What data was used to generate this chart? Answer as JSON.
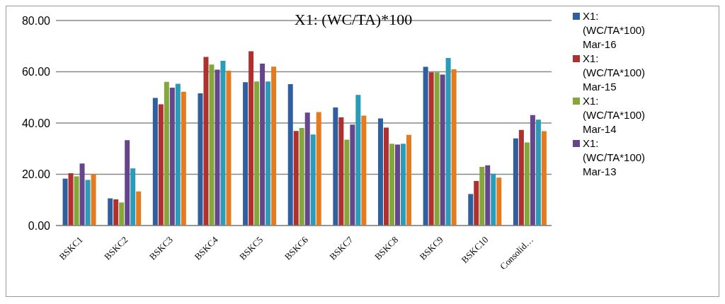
{
  "chart_data": {
    "type": "bar",
    "title": "X1: (WC/TA)*100",
    "categories": [
      "BSKC1",
      "BSKC2",
      "BSKC3",
      "BSKC4",
      "BSKC5",
      "BSKC6",
      "BSKC7",
      "BSKC8",
      "BSKC9",
      "BSKC10",
      "Consolid…"
    ],
    "series": [
      {
        "name": "X1: (WC/TA*100) Mar-16",
        "color": "#2f5f9f",
        "values": [
          18.3,
          10.6,
          49.8,
          51.6,
          55.9,
          55.2,
          46.1,
          41.8,
          61.9,
          12.3,
          34.0
        ]
      },
      {
        "name": "X1: (WC/TA*100) Mar-15",
        "color": "#b0302f",
        "values": [
          20.4,
          10.2,
          47.3,
          65.8,
          68.0,
          36.9,
          42.2,
          38.2,
          59.8,
          17.4,
          37.3
        ]
      },
      {
        "name": "X1: (WC/TA*100) Mar-14",
        "color": "#84a63a",
        "values": [
          19.2,
          9.0,
          56.1,
          62.8,
          56.2,
          38.1,
          33.5,
          31.9,
          59.8,
          22.9,
          32.4
        ]
      },
      {
        "name": "X1: (WC/TA*100) Mar-13",
        "color": "#65468c",
        "values": [
          24.2,
          33.3,
          53.8,
          60.8,
          63.2,
          44.1,
          39.4,
          31.6,
          58.9,
          23.5,
          43.1
        ]
      },
      {
        "color": "#2a9bb8",
        "values": [
          17.8,
          22.3,
          55.3,
          64.3,
          56.2,
          35.5,
          51.0,
          31.9,
          65.4,
          20.2,
          41.3
        ]
      },
      {
        "color": "#e57b1f",
        "values": [
          20.0,
          13.3,
          52.2,
          60.4,
          62.0,
          44.3,
          42.9,
          35.4,
          61.0,
          18.7,
          36.8
        ]
      }
    ],
    "ylim": [
      0,
      80
    ],
    "yticks": [
      {
        "value": 0,
        "label": "0.00"
      },
      {
        "value": 20,
        "label": "20.00"
      },
      {
        "value": 40,
        "label": "40.00"
      },
      {
        "value": 60,
        "label": "60.00"
      },
      {
        "value": 80,
        "label": "80.00"
      }
    ],
    "grid": "y",
    "legend": "right"
  }
}
